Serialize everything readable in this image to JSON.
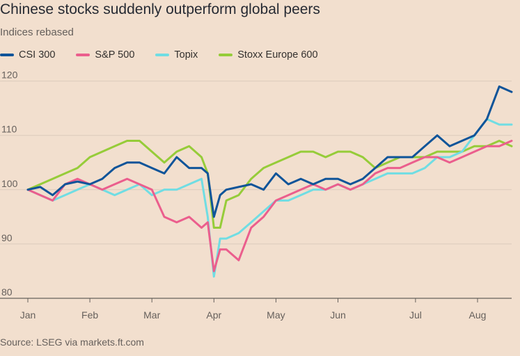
{
  "header": {
    "title": "Chinese stocks suddenly outperform global peers",
    "subtitle": "Indices rebased"
  },
  "footer": {
    "source": "Source: LSEG via markets.ft.com"
  },
  "chart_data": {
    "type": "line",
    "title": "Chinese stocks suddenly outperform global peers",
    "subtitle": "Indices rebased",
    "xlabel": "",
    "ylabel": "",
    "ylim": [
      80,
      122
    ],
    "yticks": [
      80,
      90,
      100,
      110,
      120
    ],
    "grid": true,
    "legend": "top-left",
    "x_unit": "months from 1 Jan",
    "xlim": [
      0,
      7.8
    ],
    "month_ticks": [
      {
        "label": "Jan",
        "x": 0
      },
      {
        "label": "Feb",
        "x": 1
      },
      {
        "label": "Mar",
        "x": 2
      },
      {
        "label": "Apr",
        "x": 3
      },
      {
        "label": "May",
        "x": 4
      },
      {
        "label": "Jun",
        "x": 5
      },
      {
        "label": "Jul",
        "x": 6.25
      },
      {
        "label": "Aug",
        "x": 7.25
      }
    ],
    "x": [
      0,
      0.2,
      0.4,
      0.6,
      0.8,
      1,
      1.2,
      1.4,
      1.6,
      1.8,
      2,
      2.2,
      2.4,
      2.6,
      2.8,
      2.9,
      3,
      3.1,
      3.2,
      3.4,
      3.6,
      3.8,
      4,
      4.2,
      4.4,
      4.6,
      4.8,
      5,
      5.2,
      5.4,
      5.6,
      5.8,
      6,
      6.2,
      6.4,
      6.6,
      6.8,
      7,
      7.2,
      7.4,
      7.6,
      7.8
    ],
    "series": [
      {
        "name": "CSI 300",
        "color": "#0f5499",
        "values": [
          100,
          100.5,
          99,
          101,
          101.5,
          101,
          102,
          104,
          105,
          105,
          104,
          103,
          106,
          104,
          104,
          103,
          95,
          99,
          100,
          100.5,
          101,
          100,
          103,
          101,
          102,
          101,
          102,
          102,
          101,
          102,
          104,
          106,
          106,
          106,
          108,
          110,
          108,
          109,
          110,
          113,
          119,
          118
        ]
      },
      {
        "name": "S&P 500",
        "color": "#eb5e8d",
        "values": [
          100,
          99,
          98,
          101,
          102,
          101,
          100,
          101,
          102,
          101,
          100,
          95,
          94,
          95,
          93,
          94,
          85,
          89,
          89,
          87,
          93,
          95,
          98,
          99,
          100,
          101,
          100,
          101,
          100,
          101,
          103,
          104,
          104,
          105,
          106,
          106,
          105,
          106,
          107,
          108,
          108,
          109
        ]
      },
      {
        "name": "Topix",
        "color": "#70dde3",
        "values": [
          100,
          99,
          98,
          99,
          100,
          101,
          100,
          99,
          100,
          101,
          99,
          100,
          100,
          101,
          102,
          95,
          84,
          91,
          91,
          92,
          94,
          96,
          98,
          98,
          99,
          100,
          100,
          101,
          100,
          101,
          102,
          103,
          103,
          103,
          104,
          106,
          106,
          107,
          110,
          113,
          112,
          112
        ]
      },
      {
        "name": "Stoxx Europe 600",
        "color": "#96cc39",
        "values": [
          100,
          101,
          102,
          103,
          104,
          106,
          107,
          108,
          109,
          109,
          107,
          105,
          107,
          108,
          106,
          103,
          93,
          93,
          98,
          99,
          102,
          104,
          105,
          106,
          107,
          107,
          106,
          107,
          107,
          106,
          104,
          105,
          106,
          106,
          106,
          107,
          107,
          107,
          108,
          108,
          109,
          108
        ]
      }
    ]
  }
}
